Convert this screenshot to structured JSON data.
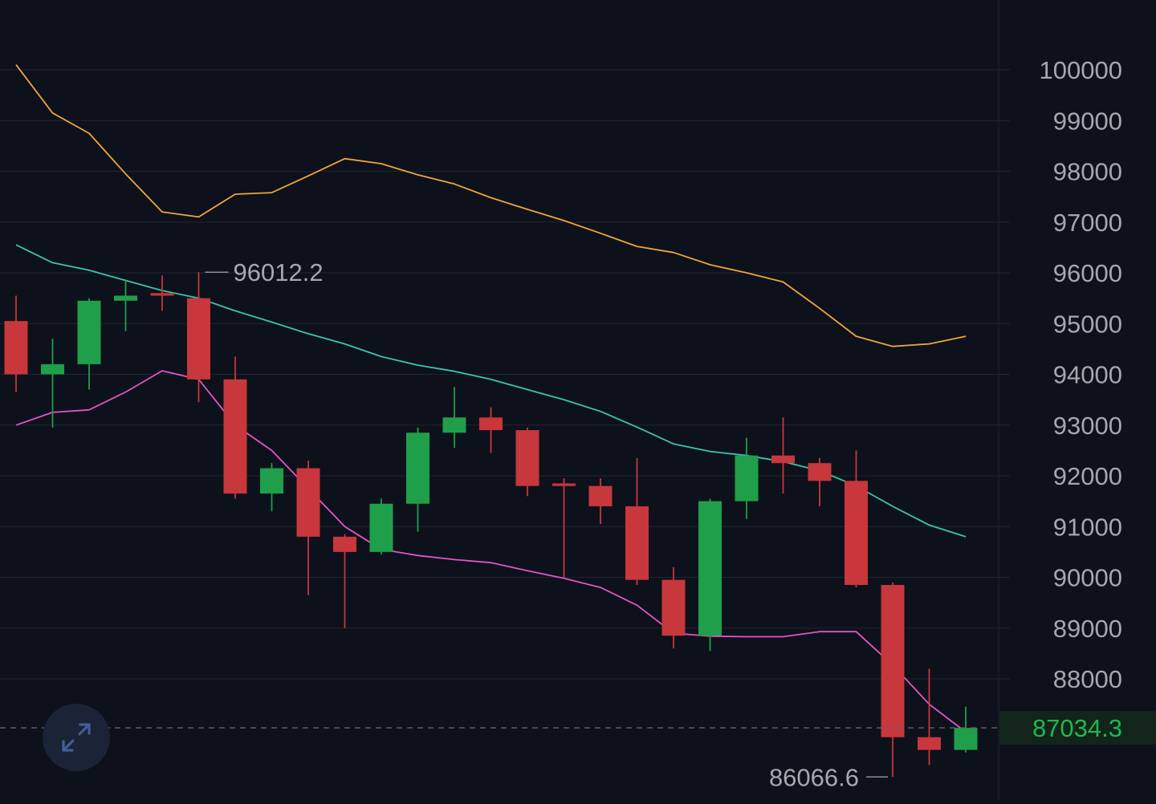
{
  "chart_data": {
    "type": "candlestick",
    "y_ticks": [
      100000,
      99000,
      98000,
      97000,
      96000,
      95000,
      94000,
      93000,
      92000,
      91000,
      90000,
      89000,
      88000
    ],
    "ylim": [
      85600,
      101300
    ],
    "grid": true,
    "candles": [
      {
        "open": 95050,
        "high": 95550,
        "low": 93650,
        "close": 94000
      },
      {
        "open": 94000,
        "high": 94700,
        "low": 92950,
        "close": 94200
      },
      {
        "open": 94200,
        "high": 95500,
        "low": 93700,
        "close": 95450
      },
      {
        "open": 95450,
        "high": 95850,
        "low": 94850,
        "close": 95550
      },
      {
        "open": 95600,
        "high": 95950,
        "low": 95250,
        "close": 95550
      },
      {
        "open": 95500,
        "high": 96012.2,
        "low": 93450,
        "close": 93900
      },
      {
        "open": 93900,
        "high": 94350,
        "low": 91550,
        "close": 91650
      },
      {
        "open": 91650,
        "high": 92250,
        "low": 91300,
        "close": 92150
      },
      {
        "open": 92150,
        "high": 92300,
        "low": 89650,
        "close": 90800
      },
      {
        "open": 90800,
        "high": 90850,
        "low": 89000,
        "close": 90500
      },
      {
        "open": 90500,
        "high": 91550,
        "low": 90450,
        "close": 91450
      },
      {
        "open": 91450,
        "high": 92950,
        "low": 90900,
        "close": 92850
      },
      {
        "open": 92850,
        "high": 93750,
        "low": 92550,
        "close": 93150
      },
      {
        "open": 93150,
        "high": 93350,
        "low": 92450,
        "close": 92900
      },
      {
        "open": 92900,
        "high": 92950,
        "low": 91600,
        "close": 91800
      },
      {
        "open": 91850,
        "high": 91950,
        "low": 90000,
        "close": 91800
      },
      {
        "open": 91800,
        "high": 91950,
        "low": 91050,
        "close": 91400
      },
      {
        "open": 91400,
        "high": 92350,
        "low": 89850,
        "close": 89950
      },
      {
        "open": 89950,
        "high": 90200,
        "low": 88600,
        "close": 88850
      },
      {
        "open": 88850,
        "high": 91550,
        "low": 88550,
        "close": 91500
      },
      {
        "open": 91500,
        "high": 92750,
        "low": 91150,
        "close": 92400
      },
      {
        "open": 92400,
        "high": 93150,
        "low": 91650,
        "close": 92250
      },
      {
        "open": 92250,
        "high": 92350,
        "low": 91400,
        "close": 91900
      },
      {
        "open": 91900,
        "high": 92500,
        "low": 89800,
        "close": 89850
      },
      {
        "open": 89850,
        "high": 89900,
        "low": 86066.6,
        "close": 86850
      },
      {
        "open": 86850,
        "high": 88200,
        "low": 86300,
        "close": 86600
      },
      {
        "open": 86600,
        "high": 87450,
        "low": 86550,
        "close": 87034.3
      }
    ],
    "moving_averages": [
      {
        "color": "#f0a43a",
        "values": [
          100100,
          99150,
          98750,
          97950,
          97200,
          97100,
          97550,
          97580,
          97910,
          98250,
          98150,
          97930,
          97750,
          97480,
          97250,
          97030,
          96780,
          96520,
          96400,
          96160,
          96000,
          95820,
          95300,
          94750,
          94550,
          94600,
          94750
        ]
      },
      {
        "color": "#3ac4b0",
        "values": [
          96550,
          96200,
          96050,
          95850,
          95650,
          95500,
          95250,
          95030,
          94800,
          94600,
          94350,
          94180,
          94060,
          93900,
          93700,
          93500,
          93270,
          92960,
          92630,
          92480,
          92400,
          92280,
          92100,
          91800,
          91400,
          91030,
          90800
        ]
      },
      {
        "color": "#e055c5",
        "values": [
          93000,
          93250,
          93300,
          93650,
          94070,
          93900,
          93000,
          92500,
          91750,
          91000,
          90550,
          90430,
          90350,
          90290,
          90130,
          89980,
          89800,
          89450,
          88900,
          88840,
          88830,
          88830,
          88930,
          88930,
          88270,
          87500,
          86950
        ]
      }
    ],
    "high_marker": 96012.2,
    "low_marker": 86066.6,
    "current_price": 87034.3,
    "colors": {
      "up": "#1f9f4a",
      "down": "#c8373b",
      "grid": "#1f2533",
      "axis_text": "#a3a7b0",
      "current_price_text": "#1fb84f",
      "current_price_bg": "#13241a"
    }
  },
  "labels": {
    "high_marker": "96012.2",
    "low_marker": "86066.6",
    "current_price": "87034.3"
  },
  "controls": {
    "expand_icon": "expand-arrows-icon"
  }
}
